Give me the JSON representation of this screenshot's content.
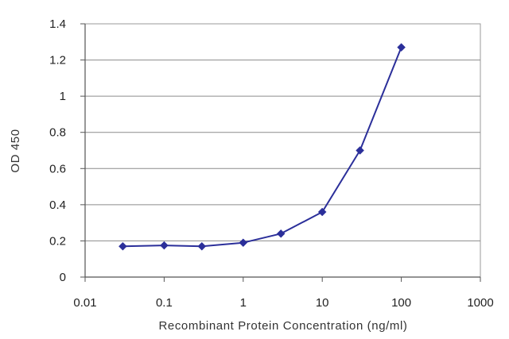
{
  "chart_data": {
    "type": "line",
    "title": "",
    "xlabel": "Recombinant Protein Concentration (ng/ml)",
    "ylabel": "OD 450",
    "xscale": "log",
    "xlim": [
      0.01,
      1000
    ],
    "ylim": [
      0,
      1.4
    ],
    "xticks": [
      "0.01",
      "0.1",
      "1",
      "10",
      "100",
      "1000"
    ],
    "yticks": [
      "0",
      "0.2",
      "0.4",
      "0.6",
      "0.8",
      "1",
      "1.2",
      "1.4"
    ],
    "grid": "horizontal",
    "legend": "none",
    "series": [
      {
        "color": "#2b2f9a",
        "marker": "diamond",
        "x": [
          0.03,
          0.1,
          0.3,
          1,
          3,
          10,
          30,
          100
        ],
        "y": [
          0.17,
          0.175,
          0.17,
          0.19,
          0.24,
          0.36,
          0.7,
          1.27
        ]
      }
    ]
  }
}
